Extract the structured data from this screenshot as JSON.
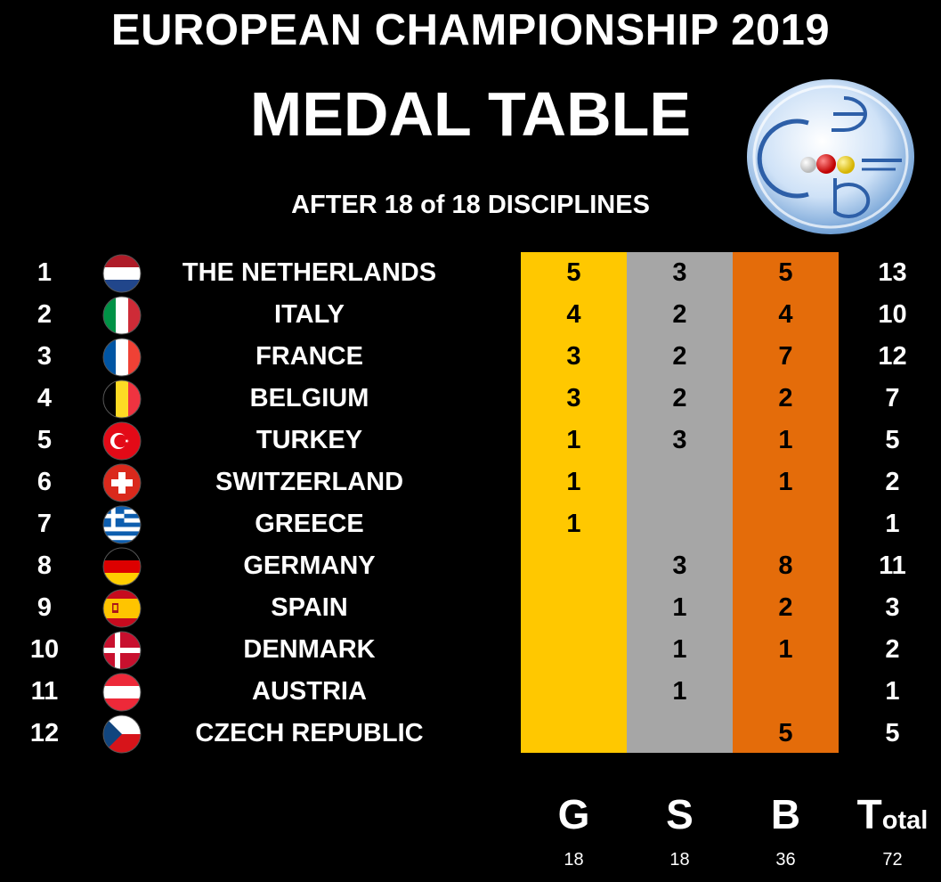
{
  "header": {
    "title": "EUROPEAN CHAMPIONSHIP 2019",
    "subtitle": "MEDAL TABLE",
    "progress": "AFTER 18 of 18 DISCIPLINES"
  },
  "logo": {
    "name": "ceb-logo",
    "letters": [
      "c",
      "e",
      "b"
    ]
  },
  "colors": {
    "gold": "#ffc800",
    "silver": "#a6a6a6",
    "bronze": "#e46c0a",
    "background": "#000000"
  },
  "rows": [
    {
      "rank": "1",
      "flag": "netherlands-flag-icon",
      "country": "THE NETHERLANDS",
      "gold": "5",
      "silver": "3",
      "bronze": "5",
      "total": "13"
    },
    {
      "rank": "2",
      "flag": "italy-flag-icon",
      "country": "ITALY",
      "gold": "4",
      "silver": "2",
      "bronze": "4",
      "total": "10"
    },
    {
      "rank": "3",
      "flag": "france-flag-icon",
      "country": "FRANCE",
      "gold": "3",
      "silver": "2",
      "bronze": "7",
      "total": "12"
    },
    {
      "rank": "4",
      "flag": "belgium-flag-icon",
      "country": "BELGIUM",
      "gold": "3",
      "silver": "2",
      "bronze": "2",
      "total": "7"
    },
    {
      "rank": "5",
      "flag": "turkey-flag-icon",
      "country": "TURKEY",
      "gold": "1",
      "silver": "3",
      "bronze": "1",
      "total": "5"
    },
    {
      "rank": "6",
      "flag": "switzerland-flag-icon",
      "country": "SWITZERLAND",
      "gold": "1",
      "silver": "",
      "bronze": "1",
      "total": "2"
    },
    {
      "rank": "7",
      "flag": "greece-flag-icon",
      "country": "GREECE",
      "gold": "1",
      "silver": "",
      "bronze": "",
      "total": "1"
    },
    {
      "rank": "8",
      "flag": "germany-flag-icon",
      "country": "GERMANY",
      "gold": "",
      "silver": "3",
      "bronze": "8",
      "total": "11"
    },
    {
      "rank": "9",
      "flag": "spain-flag-icon",
      "country": "SPAIN",
      "gold": "",
      "silver": "1",
      "bronze": "2",
      "total": "3"
    },
    {
      "rank": "10",
      "flag": "denmark-flag-icon",
      "country": "DENMARK",
      "gold": "",
      "silver": "1",
      "bronze": "1",
      "total": "2"
    },
    {
      "rank": "11",
      "flag": "austria-flag-icon",
      "country": "AUSTRIA",
      "gold": "",
      "silver": "1",
      "bronze": "",
      "total": "1"
    },
    {
      "rank": "12",
      "flag": "czech-flag-icon",
      "country": "CZECH REPUBLIC",
      "gold": "",
      "silver": "",
      "bronze": "5",
      "total": "5"
    }
  ],
  "column_headers": {
    "gold": "G",
    "silver": "S",
    "bronze": "B",
    "total_big": "T",
    "total_rest": "otal"
  },
  "totals": {
    "gold": "18",
    "silver": "18",
    "bronze": "36",
    "total": "72"
  }
}
